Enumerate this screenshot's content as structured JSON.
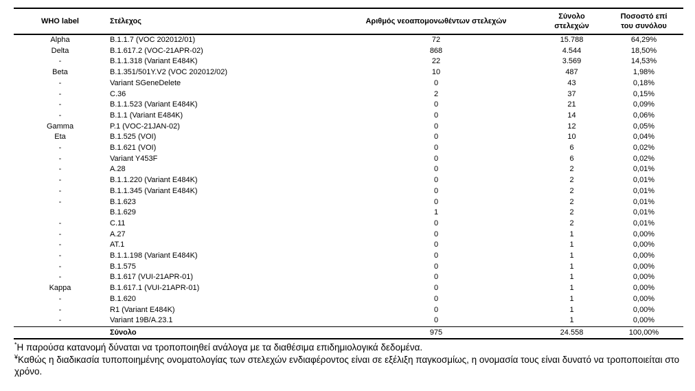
{
  "table": {
    "headers": {
      "who": "WHO label",
      "strain": "Στέλεχος",
      "new_count": "Αριθμός νεοαπομονωθέντων στελεχών",
      "total": "Σύνολο στελεχών",
      "pct": "Ποσοστό επί του συνόλου"
    },
    "rows": [
      {
        "who": "Alpha",
        "strain": "B.1.1.7 (VOC 202012/01)",
        "new_count": "72",
        "total": "15.788",
        "pct": "64,29%"
      },
      {
        "who": "Delta",
        "strain": "B.1.617.2 (VOC-21APR-02)",
        "new_count": "868",
        "total": "4.544",
        "pct": "18,50%"
      },
      {
        "who": "-",
        "strain": "B.1.1.318 (Variant E484K)",
        "new_count": "22",
        "total": "3.569",
        "pct": "14,53%"
      },
      {
        "who": "Beta",
        "strain": "B.1.351/501Y.V2 (VOC 202012/02)",
        "new_count": "10",
        "total": "487",
        "pct": "1,98%"
      },
      {
        "who": "-",
        "strain": "Variant SGeneDelete",
        "new_count": "0",
        "total": "43",
        "pct": "0,18%"
      },
      {
        "who": "-",
        "strain": "C.36",
        "new_count": "2",
        "total": "37",
        "pct": "0,15%"
      },
      {
        "who": "-",
        "strain": "B.1.1.523 (Variant E484K)",
        "new_count": "0",
        "total": "21",
        "pct": "0,09%"
      },
      {
        "who": "-",
        "strain": "B.1.1 (Variant E484K)",
        "new_count": "0",
        "total": "14",
        "pct": "0,06%"
      },
      {
        "who": "Gamma",
        "strain": "P.1 (VOC-21JAN-02)",
        "new_count": "0",
        "total": "12",
        "pct": "0,05%"
      },
      {
        "who": "Eta",
        "strain": "B.1.525 (VOI)",
        "new_count": "0",
        "total": "10",
        "pct": "0,04%"
      },
      {
        "who": "-",
        "strain": "B.1.621 (VOI)",
        "new_count": "0",
        "total": "6",
        "pct": "0,02%"
      },
      {
        "who": "-",
        "strain": "Variant Y453F",
        "new_count": "0",
        "total": "6",
        "pct": "0,02%"
      },
      {
        "who": "-",
        "strain": "A.28",
        "new_count": "0",
        "total": "2",
        "pct": "0,01%"
      },
      {
        "who": "-",
        "strain": "B.1.1.220 (Variant E484K)",
        "new_count": "0",
        "total": "2",
        "pct": "0,01%"
      },
      {
        "who": "-",
        "strain": "B.1.1.345 (Variant E484K)",
        "new_count": "0",
        "total": "2",
        "pct": "0,01%"
      },
      {
        "who": "-",
        "strain": "B.1.623",
        "new_count": "0",
        "total": "2",
        "pct": "0,01%"
      },
      {
        "who": "",
        "strain": "B.1.629",
        "new_count": "1",
        "total": "2",
        "pct": "0,01%"
      },
      {
        "who": "-",
        "strain": "C.11",
        "new_count": "0",
        "total": "2",
        "pct": "0,01%"
      },
      {
        "who": "-",
        "strain": "A.27",
        "new_count": "0",
        "total": "1",
        "pct": "0,00%"
      },
      {
        "who": "-",
        "strain": "AT.1",
        "new_count": "0",
        "total": "1",
        "pct": "0,00%"
      },
      {
        "who": "-",
        "strain": "B.1.1.198 (Variant E484K)",
        "new_count": "0",
        "total": "1",
        "pct": "0,00%"
      },
      {
        "who": "-",
        "strain": "B.1.575",
        "new_count": "0",
        "total": "1",
        "pct": "0,00%"
      },
      {
        "who": "-",
        "strain": "B.1.617 (VUI-21APR-01)",
        "new_count": "0",
        "total": "1",
        "pct": "0,00%"
      },
      {
        "who": "Kappa",
        "strain": "B.1.617.1 (VUI-21APR-01)",
        "new_count": "0",
        "total": "1",
        "pct": "0,00%"
      },
      {
        "who": "-",
        "strain": "B.1.620",
        "new_count": "0",
        "total": "1",
        "pct": "0,00%"
      },
      {
        "who": "-",
        "strain": "R1 (Variant E484K)",
        "new_count": "0",
        "total": "1",
        "pct": "0,00%"
      },
      {
        "who": "-",
        "strain": "Variant 19B/A.23.1",
        "new_count": "0",
        "total": "1",
        "pct": "0,00%"
      }
    ],
    "total_row": {
      "label": "Σύνολο",
      "new_count": "975",
      "total": "24.558",
      "pct": "100,00%"
    }
  },
  "footnotes": [
    {
      "marker": "*",
      "text": "Η παρούσα κατανομή δύναται να τροποποιηθεί ανάλογα με τα διαθέσιμα επιδημιολογικά δεδομένα."
    },
    {
      "marker": "¥",
      "text": "Καθώς η διαδικασία τυποποιημένης ονοματολογίας των στελεχών ενδιαφέροντος είναι σε εξέλιξη παγκοσμίως, η ονομασία τους είναι δυνατό να τροποποιείται στο χρόνο."
    }
  ],
  "colors": {
    "text": "#000000",
    "rule": "#000000",
    "background": "#ffffff"
  }
}
